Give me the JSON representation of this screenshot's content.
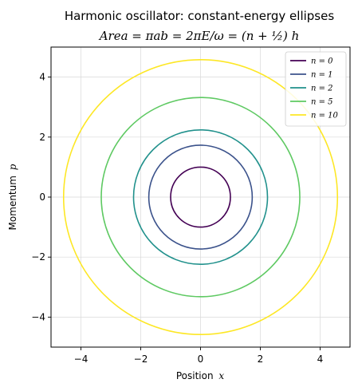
{
  "chart_data": {
    "type": "line",
    "title": "Harmonic oscillator: constant-energy ellipses",
    "subtitle": "Area  = πab = 2πE/ω = (n + ½) h",
    "xlabel_text": "Position",
    "xlabel_var": "x",
    "ylabel_text": "Momentum",
    "ylabel_var": "p",
    "xlim": [
      -5,
      5
    ],
    "ylim": [
      -5,
      5
    ],
    "xticks": [
      -4,
      -2,
      0,
      2,
      4
    ],
    "yticks": [
      -4,
      -2,
      0,
      2,
      4
    ],
    "xtick_labels": [
      "−4",
      "−2",
      "0",
      "2",
      "4"
    ],
    "ytick_labels": [
      "−4",
      "−2",
      "0",
      "2",
      "4"
    ],
    "grid": true,
    "legend_position": "top-right",
    "series": [
      {
        "name": "n = 0",
        "n": 0,
        "semi_axis_x": 1.0,
        "semi_axis_p": 1.0,
        "color": "#440154"
      },
      {
        "name": "n = 1",
        "n": 1,
        "semi_axis_x": 1.73,
        "semi_axis_p": 1.73,
        "color": "#3b528b"
      },
      {
        "name": "n = 2",
        "n": 2,
        "semi_axis_x": 2.24,
        "semi_axis_p": 2.24,
        "color": "#21918c"
      },
      {
        "name": "n = 5",
        "n": 5,
        "semi_axis_x": 3.32,
        "semi_axis_p": 3.32,
        "color": "#5ec962"
      },
      {
        "name": "n = 10",
        "n": 10,
        "semi_axis_x": 4.58,
        "semi_axis_p": 4.58,
        "color": "#fde725"
      }
    ]
  }
}
